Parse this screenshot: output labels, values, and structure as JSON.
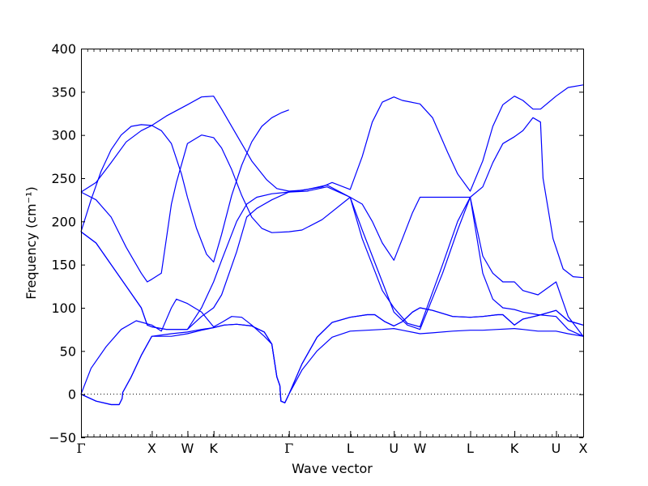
{
  "chart_data": {
    "type": "line",
    "title": "",
    "xlabel": "Wave vector",
    "ylabel": "Frequency (cm⁻¹)",
    "ylim": [
      -50,
      400
    ],
    "yticks": [
      -50,
      0,
      50,
      100,
      150,
      200,
      250,
      300,
      350,
      400
    ],
    "xlim": [
      0,
      100
    ],
    "x_ticks": [
      {
        "label": "Γ",
        "x": 0
      },
      {
        "label": "X",
        "x": 14.1
      },
      {
        "label": "W",
        "x": 21.2
      },
      {
        "label": "K",
        "x": 26.4
      },
      {
        "label": "Γ",
        "x": 41.4
      },
      {
        "label": "L",
        "x": 53.6
      },
      {
        "label": "U",
        "x": 62.3
      },
      {
        "label": "W",
        "x": 67.5
      },
      {
        "label": "L",
        "x": 77.5
      },
      {
        "label": "K",
        "x": 86.3
      },
      {
        "label": "U",
        "x": 94.6
      },
      {
        "label": "X",
        "x": 100
      }
    ],
    "line_color": "#0000ff",
    "zero_line": true,
    "grid": false,
    "series": [
      {
        "values": [
          [
            0,
            0
          ],
          [
            3,
            -8
          ],
          [
            6,
            -12
          ],
          [
            7.6,
            -12
          ],
          [
            8.2,
            -5
          ],
          [
            8.3,
            2
          ],
          [
            10,
            20
          ],
          [
            12,
            45
          ],
          [
            14.1,
            67
          ],
          [
            18,
            70
          ],
          [
            21.2,
            72
          ],
          [
            24,
            75
          ],
          [
            26.4,
            77
          ],
          [
            28.5,
            80
          ],
          [
            31,
            81
          ],
          [
            34,
            79
          ],
          [
            36.5,
            72
          ],
          [
            38,
            58
          ],
          [
            39,
            20
          ],
          [
            39.6,
            10
          ],
          [
            39.8,
            -8
          ],
          [
            40.6,
            -10
          ],
          [
            41.4,
            0
          ],
          [
            44,
            28
          ],
          [
            47,
            50
          ],
          [
            50,
            66
          ],
          [
            53.6,
            73
          ],
          [
            57,
            74
          ],
          [
            60,
            75
          ],
          [
            62.3,
            76
          ],
          [
            64,
            74
          ],
          [
            67.5,
            70
          ],
          [
            70,
            71
          ],
          [
            74,
            73
          ],
          [
            77.5,
            74
          ],
          [
            80,
            74
          ],
          [
            83,
            75
          ],
          [
            86.3,
            76
          ],
          [
            88,
            75
          ],
          [
            91,
            73
          ],
          [
            94.6,
            73
          ],
          [
            97,
            70
          ],
          [
            100,
            67
          ]
        ]
      },
      {
        "values": [
          [
            0,
            0
          ],
          [
            3,
            -8
          ],
          [
            6,
            -12
          ],
          [
            7.6,
            -12
          ],
          [
            8.2,
            -5
          ],
          [
            8.3,
            2
          ],
          [
            10,
            20
          ],
          [
            12,
            45
          ],
          [
            14.1,
            67
          ],
          [
            18,
            67
          ],
          [
            21.2,
            70
          ],
          [
            24,
            74
          ],
          [
            26.4,
            77
          ],
          [
            28.5,
            80
          ],
          [
            31,
            81
          ],
          [
            34,
            79
          ],
          [
            36.5,
            72
          ],
          [
            38,
            58
          ],
          [
            39,
            20
          ],
          [
            39.6,
            10
          ],
          [
            39.8,
            -8
          ],
          [
            40.6,
            -10
          ],
          [
            41.4,
            0
          ],
          [
            44,
            35
          ],
          [
            47,
            66
          ],
          [
            50,
            83
          ],
          [
            53.6,
            89
          ],
          [
            57,
            92
          ],
          [
            58.5,
            92
          ],
          [
            60.5,
            84
          ],
          [
            62.3,
            79
          ],
          [
            64,
            84
          ],
          [
            66,
            95
          ],
          [
            67.5,
            100
          ],
          [
            70,
            97
          ],
          [
            74,
            90
          ],
          [
            77.5,
            89
          ],
          [
            80,
            90
          ],
          [
            83,
            92
          ],
          [
            84,
            92
          ],
          [
            86.3,
            80
          ],
          [
            88,
            87
          ],
          [
            91,
            91
          ],
          [
            94.6,
            97
          ],
          [
            97,
            85
          ],
          [
            100,
            80
          ]
        ]
      },
      {
        "values": [
          [
            0,
            0
          ],
          [
            2,
            30
          ],
          [
            5,
            55
          ],
          [
            8,
            75
          ],
          [
            11,
            85
          ],
          [
            14.1,
            80
          ],
          [
            16,
            73
          ],
          [
            18,
            100
          ],
          [
            19,
            110
          ],
          [
            21.2,
            105
          ],
          [
            24,
            95
          ],
          [
            26.4,
            78
          ],
          [
            28,
            83
          ],
          [
            30,
            90
          ],
          [
            32,
            89
          ],
          [
            34,
            80
          ],
          [
            36.5,
            67
          ],
          [
            38,
            58
          ],
          [
            39,
            20
          ],
          [
            39.6,
            10
          ],
          [
            39.8,
            -8
          ],
          [
            40.6,
            -10
          ],
          [
            41.4,
            0
          ],
          [
            44,
            35
          ],
          [
            47,
            66
          ],
          [
            50,
            83
          ],
          [
            53.6,
            89
          ],
          [
            57,
            92
          ],
          [
            58.5,
            92
          ],
          [
            60.5,
            84
          ],
          [
            62.3,
            79
          ],
          [
            64,
            84
          ],
          [
            66,
            95
          ],
          [
            67.5,
            100
          ],
          [
            70,
            97
          ],
          [
            74,
            90
          ],
          [
            77.5,
            89
          ],
          [
            80,
            90
          ],
          [
            83,
            92
          ],
          [
            84,
            92
          ],
          [
            86.3,
            80
          ],
          [
            88,
            87
          ],
          [
            91,
            91
          ],
          [
            94.6,
            97
          ],
          [
            97,
            85
          ],
          [
            100,
            80
          ]
        ]
      },
      {
        "values": [
          [
            0,
            188
          ],
          [
            3,
            175
          ],
          [
            6,
            150
          ],
          [
            9,
            125
          ],
          [
            12,
            100
          ],
          [
            13.2,
            80
          ],
          [
            14.1,
            78
          ],
          [
            17,
            75
          ],
          [
            21.2,
            75
          ],
          [
            24,
            90
          ],
          [
            26.4,
            100
          ],
          [
            28,
            115
          ],
          [
            31,
            165
          ],
          [
            33,
            205
          ],
          [
            35,
            215
          ],
          [
            38,
            225
          ],
          [
            41.4,
            234
          ],
          [
            45,
            237
          ],
          [
            49,
            242
          ],
          [
            53.6,
            228
          ],
          [
            56,
            190
          ],
          [
            58,
            160
          ],
          [
            60,
            130
          ],
          [
            62.3,
            95
          ],
          [
            65,
            80
          ],
          [
            67.5,
            75
          ],
          [
            72,
            140
          ],
          [
            75,
            190
          ],
          [
            77.5,
            228
          ],
          [
            80,
            140
          ],
          [
            82,
            110
          ],
          [
            84,
            100
          ],
          [
            86.3,
            98
          ],
          [
            88,
            95
          ],
          [
            91,
            92
          ],
          [
            94.6,
            90
          ],
          [
            97,
            75
          ],
          [
            100,
            67
          ]
        ]
      },
      {
        "values": [
          [
            0,
            188
          ],
          [
            3,
            175
          ],
          [
            6,
            150
          ],
          [
            9,
            125
          ],
          [
            12,
            100
          ],
          [
            13.2,
            80
          ],
          [
            14.1,
            78
          ],
          [
            17,
            75
          ],
          [
            21.2,
            75
          ],
          [
            24,
            100
          ],
          [
            26.4,
            130
          ],
          [
            28,
            155
          ],
          [
            31,
            200
          ],
          [
            33,
            220
          ],
          [
            35,
            228
          ],
          [
            38,
            232
          ],
          [
            41.4,
            234
          ],
          [
            45,
            235
          ],
          [
            49,
            240
          ],
          [
            53.6,
            228
          ],
          [
            56,
            180
          ],
          [
            58,
            150
          ],
          [
            60,
            120
          ],
          [
            62.3,
            100
          ],
          [
            65,
            82
          ],
          [
            67.5,
            78
          ],
          [
            72,
            150
          ],
          [
            75,
            200
          ],
          [
            77.5,
            228
          ],
          [
            80,
            160
          ],
          [
            82,
            140
          ],
          [
            84,
            130
          ],
          [
            86.3,
            130
          ],
          [
            88,
            120
          ],
          [
            91,
            115
          ],
          [
            94.6,
            130
          ],
          [
            97,
            90
          ],
          [
            100,
            67
          ]
        ]
      },
      {
        "values": [
          [
            0,
            234
          ],
          [
            3,
            225
          ],
          [
            6,
            205
          ],
          [
            9,
            170
          ],
          [
            12,
            140
          ],
          [
            13.2,
            130
          ],
          [
            14.1,
            133
          ],
          [
            16,
            140
          ],
          [
            17,
            180
          ],
          [
            18,
            220
          ],
          [
            19,
            245
          ],
          [
            21.2,
            290
          ],
          [
            24,
            300
          ],
          [
            26.4,
            297
          ],
          [
            28,
            285
          ],
          [
            30,
            260
          ],
          [
            32,
            230
          ],
          [
            34,
            205
          ],
          [
            36,
            192
          ],
          [
            38,
            187
          ],
          [
            41.4,
            188
          ],
          [
            44,
            190
          ],
          [
            48,
            202
          ],
          [
            53.6,
            228
          ],
          [
            56,
            220
          ],
          [
            58,
            200
          ],
          [
            60,
            175
          ],
          [
            62.3,
            155
          ],
          [
            64,
            180
          ],
          [
            66,
            210
          ],
          [
            67.5,
            228
          ],
          [
            70,
            228
          ],
          [
            74,
            228
          ],
          [
            77.5,
            228
          ],
          [
            80,
            240
          ],
          [
            82,
            268
          ],
          [
            84,
            290
          ],
          [
            86.3,
            298
          ],
          [
            88,
            305
          ],
          [
            90,
            320
          ],
          [
            91.5,
            315
          ],
          [
            92,
            250
          ],
          [
            94,
            180
          ],
          [
            96,
            145
          ],
          [
            98,
            136
          ],
          [
            100,
            135
          ]
        ]
      },
      {
        "values": [
          [
            0,
            234
          ],
          [
            3,
            245
          ],
          [
            6,
            268
          ],
          [
            9,
            292
          ],
          [
            12,
            305
          ],
          [
            14.1,
            311
          ],
          [
            17,
            322
          ],
          [
            21.2,
            335
          ],
          [
            24,
            344
          ],
          [
            26.4,
            345
          ],
          [
            28,
            330
          ],
          [
            31,
            300
          ],
          [
            34,
            270
          ],
          [
            37,
            248
          ],
          [
            39,
            238
          ],
          [
            41.4,
            235
          ],
          [
            44,
            236
          ],
          [
            48,
            240
          ],
          [
            50,
            245
          ],
          [
            53.6,
            237
          ],
          [
            56,
            275
          ],
          [
            58,
            315
          ],
          [
            60,
            338
          ],
          [
            62.3,
            344
          ],
          [
            64,
            340
          ],
          [
            67.5,
            336
          ],
          [
            70,
            320
          ],
          [
            73,
            280
          ],
          [
            75,
            255
          ],
          [
            77.5,
            235
          ],
          [
            80,
            270
          ],
          [
            82,
            310
          ],
          [
            84,
            335
          ],
          [
            86.3,
            345
          ],
          [
            88,
            340
          ],
          [
            90,
            330
          ],
          [
            91.5,
            330
          ],
          [
            94.6,
            345
          ],
          [
            97,
            355
          ],
          [
            100,
            358
          ]
        ]
      },
      {
        "values": [
          [
            0,
            188
          ],
          [
            2,
            225
          ],
          [
            4,
            258
          ],
          [
            6,
            283
          ],
          [
            8,
            300
          ],
          [
            10,
            310
          ],
          [
            12,
            312
          ],
          [
            14.1,
            311
          ],
          [
            16,
            305
          ],
          [
            18,
            290
          ],
          [
            20,
            255
          ],
          [
            21.2,
            228
          ],
          [
            23,
            192
          ],
          [
            25,
            162
          ],
          [
            26.4,
            153
          ],
          [
            28,
            185
          ],
          [
            30,
            230
          ],
          [
            32,
            265
          ],
          [
            34,
            292
          ],
          [
            36,
            310
          ],
          [
            38,
            320
          ],
          [
            40,
            326
          ],
          [
            41.4,
            329
          ]
        ]
      }
    ]
  }
}
